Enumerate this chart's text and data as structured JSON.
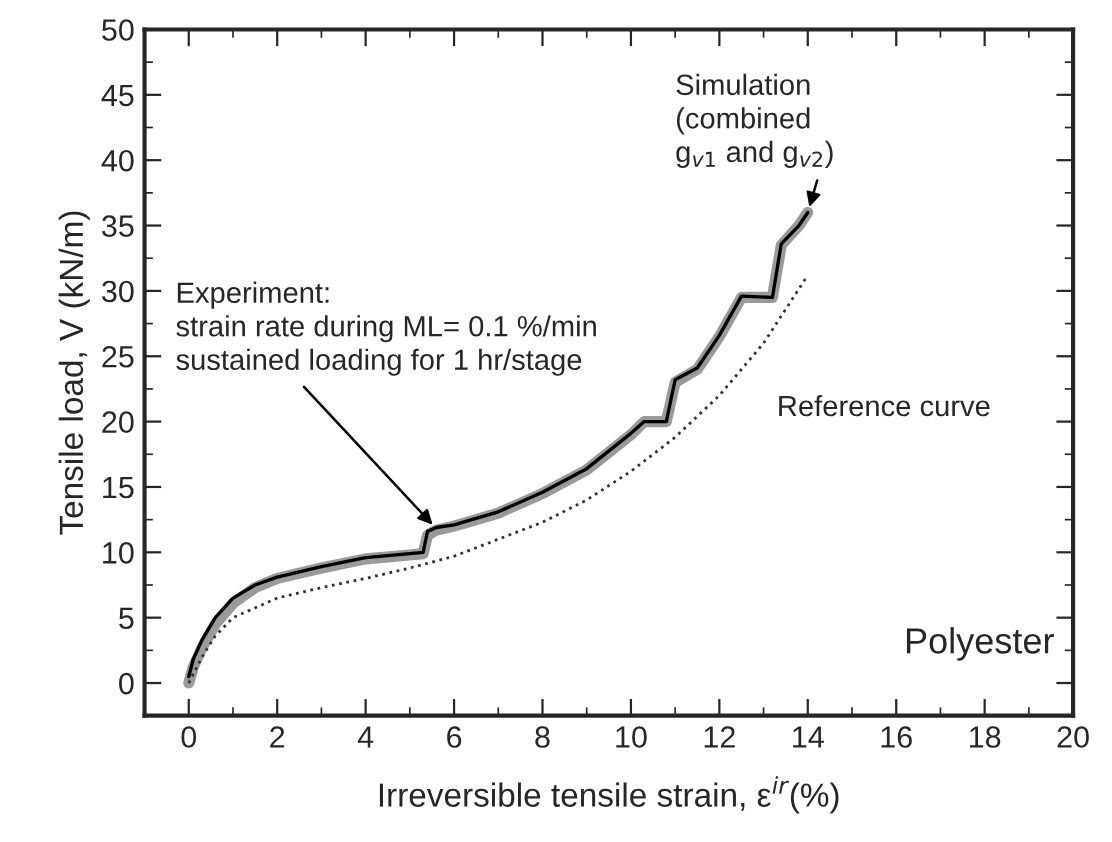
{
  "chart_data": {
    "type": "line",
    "xlabel": "Irreversible tensile strain, ε$^{ir}$(%)",
    "ylabel": "Tensile load, V (kN/m)",
    "xlim": [
      -1,
      20
    ],
    "xticks": [
      0,
      2,
      4,
      6,
      8,
      10,
      12,
      14,
      16,
      18,
      20
    ],
    "ylim": [
      -2.5,
      50
    ],
    "yticks": [
      0,
      5,
      10,
      15,
      20,
      25,
      30,
      35,
      40,
      45,
      50
    ],
    "grid": false,
    "legend": false,
    "marker": "none",
    "series": [
      {
        "color": "#9a9a9a",
        "line_style": "solid",
        "x": [
          0,
          0.1,
          0.3,
          0.6,
          1,
          1.5,
          2,
          3,
          4,
          5,
          5.3,
          5.4,
          5.6,
          6,
          7,
          8,
          9,
          10,
          10.3,
          10.8,
          11,
          11.5,
          12,
          12.5,
          13.2,
          13.4,
          13.8,
          14
        ],
        "values": [
          0,
          1.2,
          2.7,
          4.5,
          6.1,
          7.3,
          8,
          8.8,
          9.5,
          9.8,
          9.9,
          11.3,
          11.7,
          12,
          13,
          14.5,
          16.3,
          19,
          20,
          20,
          23,
          24,
          26.5,
          29.5,
          29.5,
          33.5,
          35,
          36
        ]
      },
      {
        "color": "#000000",
        "line_style": "solid",
        "x": [
          0,
          0.1,
          0.3,
          0.6,
          1,
          1.5,
          2,
          3,
          4,
          5,
          5.3,
          5.4,
          5.6,
          6,
          7,
          8,
          9,
          10,
          10.3,
          10.8,
          11,
          11.5,
          12,
          12.5,
          13.2,
          13.4,
          13.8,
          14
        ],
        "values": [
          0.5,
          1.8,
          3.3,
          5,
          6.5,
          7.5,
          8.1,
          8.9,
          9.6,
          9.9,
          10,
          11.6,
          11.9,
          12.1,
          13.1,
          14.6,
          16.4,
          19.1,
          20,
          20,
          23.2,
          24.1,
          26.6,
          29.6,
          29.5,
          33.6,
          35,
          36
        ]
      },
      {
        "color": "#333333",
        "line_style": "dotted",
        "x": [
          0,
          0.3,
          0.6,
          1,
          2,
          3,
          4,
          5,
          6,
          7,
          8,
          9,
          10,
          11,
          12,
          13,
          14
        ],
        "values": [
          0,
          2,
          3.6,
          5,
          6.5,
          7.3,
          8,
          8.8,
          9.7,
          11,
          12.3,
          14,
          16.2,
          18.8,
          22,
          26,
          31.2
        ]
      }
    ],
    "annotations": [
      {
        "text": "Experiment:\nstrain rate during ML= 0.1 %/min\nsustained loading for 1 hr/stage",
        "x": 5.6,
        "y": 11.8
      },
      {
        "text": "Simulation\n(combined\ng$_{v1}$ and g$_{v2}$)",
        "x": 14,
        "y": 36
      },
      {
        "text": "Reference curve",
        "x": 13,
        "y": 26
      },
      "Polyester"
    ]
  }
}
